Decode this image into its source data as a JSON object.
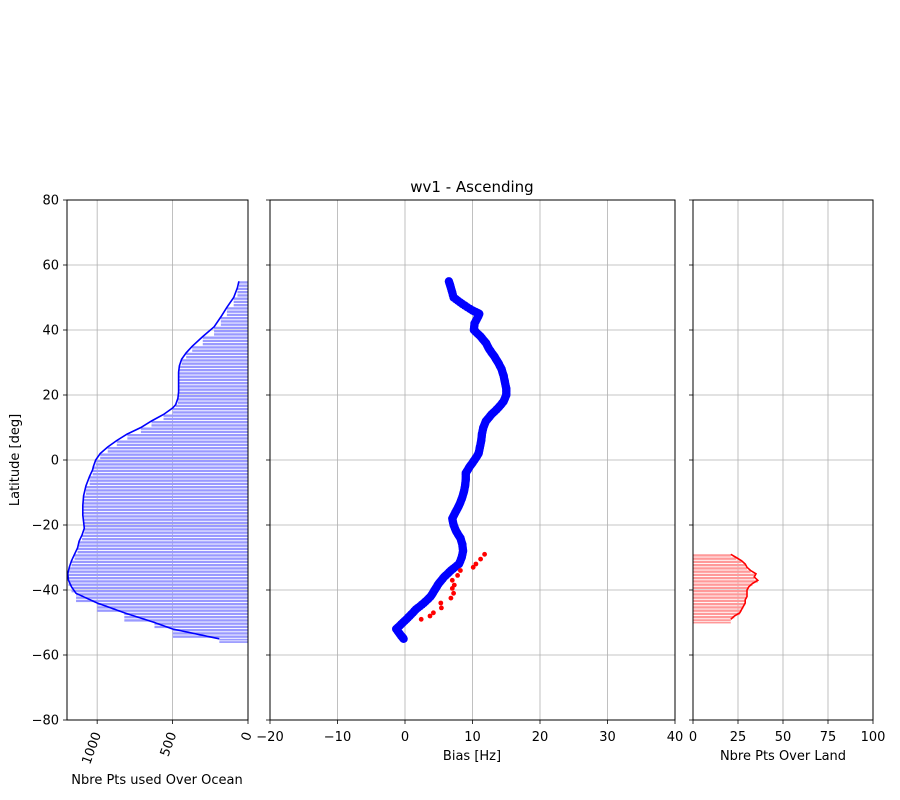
{
  "chart_data": [
    {
      "type": "area",
      "id": "ocean",
      "xlabel": "Nbre Pts used Over Ocean",
      "ylabel": "Latitude [deg]",
      "xlim": [
        1200,
        0
      ],
      "ylim": [
        -80,
        80
      ],
      "xticks": [
        1000,
        500,
        0
      ],
      "yticks": [
        -80,
        -60,
        -40,
        -20,
        0,
        20,
        40,
        60,
        80
      ],
      "xtick_rotation": -70,
      "grid": true,
      "color": "#0000ff",
      "fill_color": "#9999ff",
      "series": [
        {
          "lat": [
            55,
            53,
            50,
            47,
            44,
            41,
            38,
            35,
            33,
            31,
            29,
            27,
            25,
            23,
            21,
            19,
            17,
            16,
            14,
            12,
            10,
            8,
            6,
            4,
            2,
            0,
            -2,
            -3,
            -5,
            -8,
            -11,
            -14,
            -17,
            -19,
            -21,
            -23,
            -25,
            -27,
            -29,
            -31,
            -33,
            -35,
            -37,
            -39,
            -41,
            -44,
            -47,
            -50,
            -52,
            -55
          ],
          "count": [
            60,
            70,
            95,
            140,
            180,
            225,
            300,
            370,
            410,
            440,
            455,
            460,
            460,
            460,
            460,
            465,
            480,
            500,
            560,
            640,
            710,
            800,
            870,
            930,
            980,
            1010,
            1025,
            1030,
            1050,
            1075,
            1090,
            1095,
            1095,
            1090,
            1085,
            1100,
            1120,
            1130,
            1150,
            1170,
            1185,
            1195,
            1190,
            1170,
            1140,
            1000,
            820,
            620,
            500,
            190
          ]
        }
      ]
    },
    {
      "type": "scatter",
      "id": "bias",
      "title": "wv1 - Ascending",
      "xlabel": "Bias [Hz]",
      "xlim": [
        -20,
        40
      ],
      "ylim": [
        -80,
        80
      ],
      "xticks": [
        -20,
        -10,
        0,
        10,
        20,
        30,
        40
      ],
      "yticks": [
        -80,
        -60,
        -40,
        -20,
        0,
        20,
        40,
        60,
        80
      ],
      "grid": true,
      "series": [
        {
          "color": "#0000ff",
          "marker_size": "large",
          "lat": [
            55,
            53,
            50,
            48,
            46,
            45,
            44,
            42,
            40,
            38,
            36,
            34,
            32,
            30,
            28,
            26,
            24,
            22,
            20,
            18,
            16,
            14,
            12,
            10,
            8,
            6,
            4,
            2,
            0,
            -2,
            -4,
            -6,
            -8,
            -10,
            -12,
            -14,
            -16,
            -18,
            -20,
            -22,
            -24,
            -26,
            -28,
            -30,
            -32,
            -34,
            -36,
            -38,
            -40,
            -42,
            -44,
            -46,
            -48,
            -50,
            -52,
            -54,
            -55
          ],
          "bias": [
            6.5,
            6.8,
            7.2,
            8.5,
            10.0,
            11.0,
            10.8,
            10.3,
            10.2,
            11.2,
            12.0,
            12.5,
            13.2,
            13.8,
            14.3,
            14.6,
            14.8,
            15.0,
            15.0,
            14.6,
            13.8,
            12.8,
            12.0,
            11.6,
            11.4,
            11.3,
            11.1,
            10.9,
            10.3,
            9.6,
            9.0,
            9.0,
            8.9,
            8.7,
            8.4,
            8.0,
            7.5,
            7.0,
            7.2,
            7.6,
            8.2,
            8.5,
            8.6,
            8.4,
            8.0,
            6.8,
            5.8,
            5.0,
            4.4,
            3.8,
            2.8,
            1.6,
            0.7,
            -0.3,
            -1.3,
            -0.6,
            -0.2
          ]
        },
        {
          "color": "#ff0000",
          "marker_size": "small",
          "lat": [
            -29,
            -30.5,
            -32,
            -33,
            -34,
            -35.5,
            -37,
            -38.5,
            -39.5,
            -41,
            -42.5,
            -44,
            -45.5,
            -47,
            -48,
            -49
          ],
          "bias": [
            11.8,
            11.2,
            10.5,
            10.1,
            8.2,
            7.8,
            7.0,
            7.3,
            7.0,
            7.2,
            6.8,
            5.3,
            5.4,
            4.2,
            3.7,
            2.4
          ]
        }
      ]
    },
    {
      "type": "area",
      "id": "land",
      "xlabel": "Nbre Pts Over Land",
      "xlim": [
        0,
        100
      ],
      "ylim": [
        -80,
        80
      ],
      "xticks": [
        0,
        25,
        50,
        75,
        100
      ],
      "yticks": [
        -80,
        -60,
        -40,
        -20,
        0,
        20,
        40,
        60,
        80
      ],
      "grid": true,
      "color": "#ff0000",
      "fill_color": "#ff9999",
      "series": [
        {
          "lat": [
            -29,
            -30,
            -31,
            -32,
            -33,
            -34,
            -35,
            -36,
            -37,
            -38,
            -39,
            -40,
            -41,
            -42,
            -43,
            -44,
            -45,
            -46,
            -47,
            -48,
            -49
          ],
          "count": [
            21,
            24,
            27,
            29,
            30,
            32,
            35,
            34,
            36,
            33,
            31,
            30,
            30,
            30,
            29,
            29,
            28,
            27,
            26,
            23,
            21
          ]
        }
      ]
    }
  ]
}
